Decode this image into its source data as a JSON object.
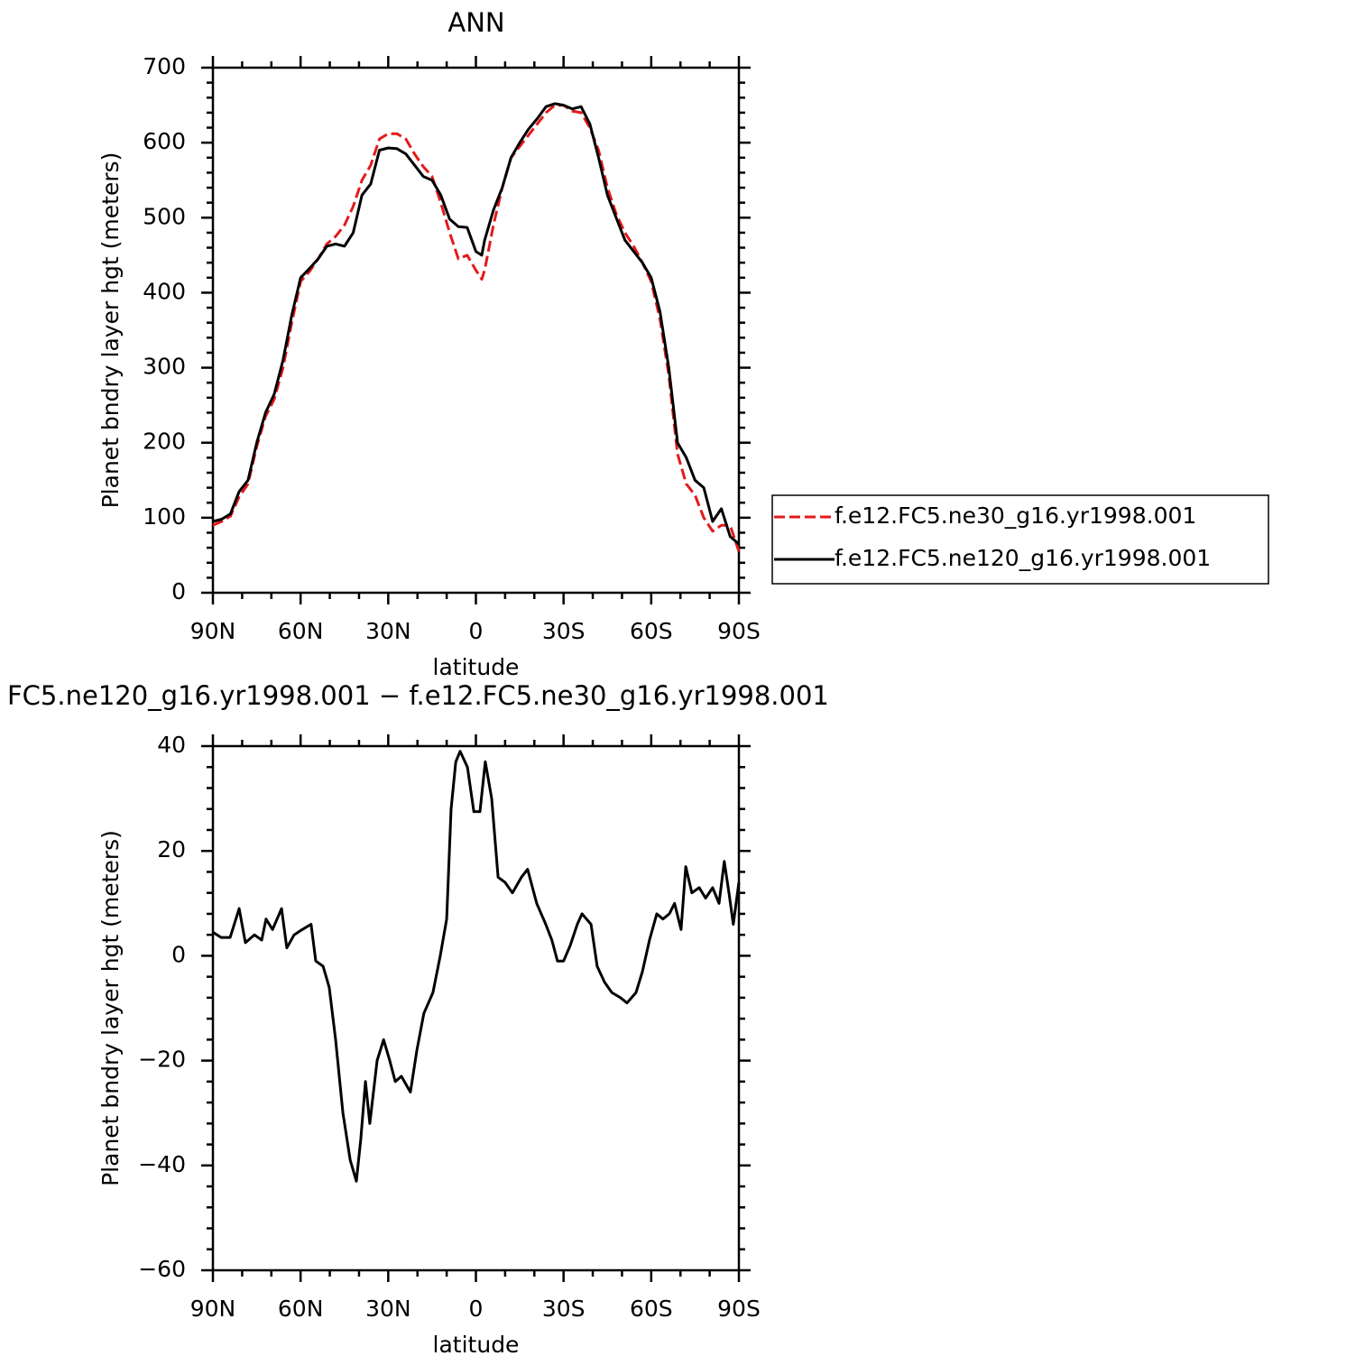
{
  "chart_data": [
    {
      "type": "line",
      "title": "ANN",
      "xlabel": "latitude",
      "ylabel": "Planet bndry layer hgt (meters)",
      "xlim": [
        90,
        -90
      ],
      "xticks": [
        {
          "value": 90,
          "label": "90N"
        },
        {
          "value": 60,
          "label": "60N"
        },
        {
          "value": 30,
          "label": "30N"
        },
        0,
        {
          "value": -30,
          "label": "30S"
        },
        {
          "value": -60,
          "label": "60S"
        },
        {
          "value": -90,
          "label": "90S"
        }
      ],
      "ylim": [
        0,
        700
      ],
      "yticks": [
        0,
        100,
        200,
        300,
        400,
        500,
        600,
        700
      ],
      "legend": "right",
      "x": [
        90,
        87,
        84,
        81,
        78,
        75,
        72,
        69,
        66,
        63,
        60,
        57,
        54,
        51,
        48,
        45,
        42,
        39,
        36,
        33,
        30,
        27,
        24,
        21,
        18,
        15,
        12,
        9,
        6,
        3,
        0,
        -2,
        -3,
        -6,
        -9,
        -12,
        -15,
        -18,
        -21,
        -24,
        -27,
        -30,
        -33,
        -36,
        -39,
        -42,
        -45,
        -48,
        -51,
        -54,
        -57,
        -60,
        -63,
        -66,
        -69,
        -72,
        -75,
        -78,
        -81,
        -84,
        -87,
        -90
      ],
      "series": [
        {
          "name": "f.e12.FC5.ne30_g16.yr1998.001",
          "color": "#e41a1c",
          "linestyle": "dashed",
          "values": [
            90,
            95,
            102,
            128,
            145,
            195,
            235,
            258,
            300,
            360,
            415,
            428,
            445,
            465,
            475,
            490,
            515,
            550,
            570,
            605,
            612,
            612,
            605,
            585,
            568,
            555,
            520,
            480,
            445,
            450,
            430,
            418,
            430,
            490,
            540,
            580,
            595,
            610,
            625,
            640,
            650,
            650,
            642,
            640,
            620,
            590,
            540,
            505,
            480,
            462,
            440,
            415,
            365,
            290,
            185,
            145,
            130,
            100,
            82,
            90,
            90,
            55
          ]
        },
        {
          "name": "f.e12.FC5.ne120_g16.yr1998.001",
          "color": "#000000",
          "linestyle": "solid",
          "values": [
            95,
            98,
            105,
            135,
            150,
            200,
            240,
            265,
            310,
            370,
            420,
            432,
            445,
            462,
            465,
            462,
            480,
            530,
            545,
            590,
            593,
            592,
            585,
            570,
            555,
            550,
            530,
            498,
            488,
            487,
            455,
            450,
            470,
            510,
            540,
            580,
            600,
            618,
            632,
            648,
            652,
            650,
            645,
            648,
            625,
            580,
            530,
            500,
            470,
            455,
            440,
            420,
            375,
            300,
            200,
            180,
            150,
            140,
            95,
            112,
            75,
            65
          ]
        }
      ]
    },
    {
      "type": "line",
      "title": "FC5.ne120_g16.yr1998.001 − f.e12.FC5.ne30_g16.yr1998.001",
      "xlabel": "latitude",
      "ylabel": "Planet bndry layer hgt (meters)",
      "xlim": [
        90,
        -90
      ],
      "xticks": [
        {
          "value": 90,
          "label": "90N"
        },
        {
          "value": 60,
          "label": "60N"
        },
        {
          "value": 30,
          "label": "30N"
        },
        0,
        {
          "value": -30,
          "label": "30S"
        },
        {
          "value": -60,
          "label": "60S"
        },
        {
          "value": -90,
          "label": "90S"
        }
      ],
      "ylim": [
        -60,
        40
      ],
      "yticks": [
        {
          "value": -60,
          "label": "−60"
        },
        {
          "value": -40,
          "label": "−40"
        },
        {
          "value": -20,
          "label": "−20"
        },
        0,
        20,
        40
      ],
      "x": [
        90,
        87.2,
        84.1,
        81,
        78.9,
        75.8,
        73.3,
        71.8,
        69.6,
        66.5,
        64.7,
        62.2,
        59.4,
        56.4,
        54.8,
        52.3,
        50.2,
        48,
        45.5,
        43,
        40.9,
        39.4,
        37.8,
        36.3,
        33.8,
        31.6,
        29.5,
        27.6,
        25.5,
        22.4,
        20.2,
        17.8,
        14.7,
        12.2,
        10,
        8.5,
        6.9,
        5.4,
        2.9,
        0.7,
        -1.4,
        -3.2,
        -5.4,
        -7.6,
        -10,
        -12.5,
        -15.6,
        -17.7,
        -20.8,
        -23.9,
        -26,
        -27.9,
        -30,
        -32.3,
        -34.7,
        -36.3,
        -39.4,
        -41.5,
        -44,
        -46.5,
        -49.5,
        -51.7,
        -54.8,
        -57,
        -59.4,
        -61.9,
        -64,
        -66.2,
        -68,
        -70.2,
        -71.8,
        -73.9,
        -76.4,
        -78.6,
        -81,
        -83.2,
        -85,
        -86.6,
        -88.1,
        -90
      ],
      "series": [
        {
          "color": "#000000",
          "linestyle": "solid",
          "values": [
            4.5,
            3.5,
            3.5,
            9,
            2.5,
            4,
            3,
            7,
            5,
            9,
            1.5,
            4,
            5,
            6,
            -1,
            -2,
            -6,
            -16,
            -30,
            -39,
            -43,
            -35,
            -24,
            -32,
            -20,
            -16,
            -20,
            -24,
            -23,
            -26,
            -18,
            -11,
            -7,
            0,
            7,
            28,
            37,
            39,
            36,
            27.5,
            27.5,
            37,
            30,
            15,
            14,
            12,
            15,
            16.5,
            10,
            6,
            3,
            -1,
            -1,
            2,
            6,
            8,
            6,
            -2,
            -5,
            -7,
            -8,
            -9,
            -7,
            -3,
            3,
            8,
            7,
            8,
            10,
            5,
            17,
            12,
            13,
            11,
            13,
            10,
            18,
            12,
            6,
            14
          ]
        }
      ]
    }
  ]
}
